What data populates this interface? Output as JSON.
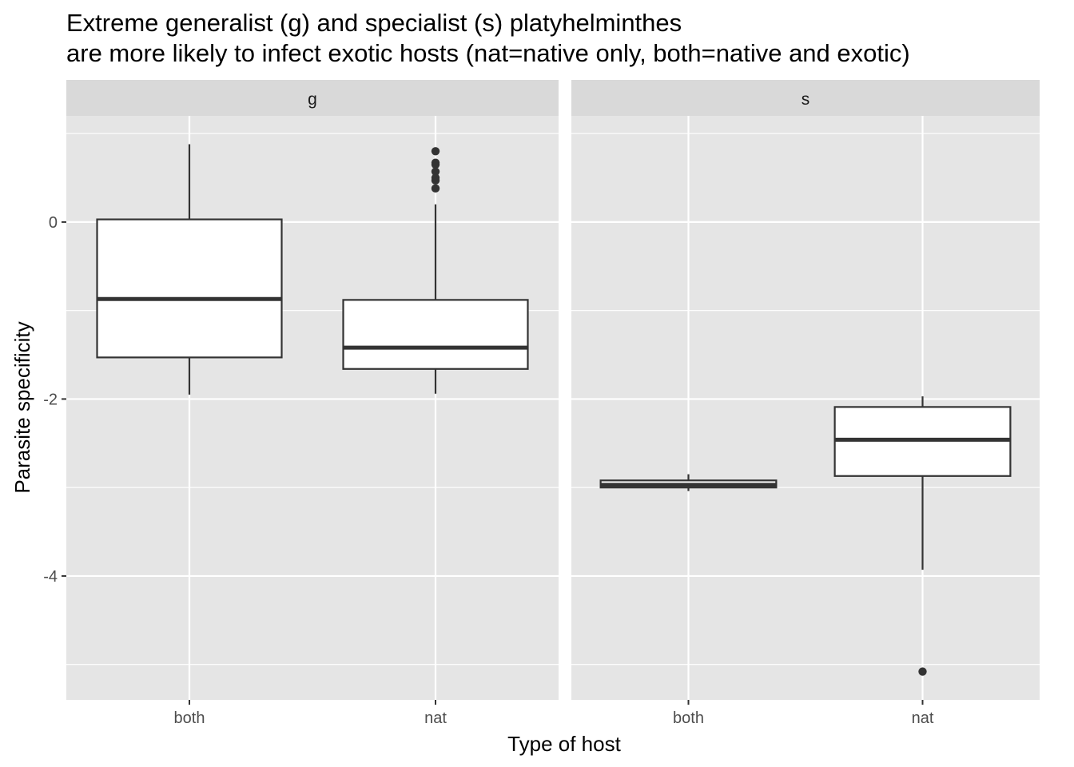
{
  "chart_data": {
    "type": "boxplot",
    "title_lines": [
      "Extreme generalist (g) and specialist (s) platyhelminthes",
      "are more likely to infect exotic hosts (nat=native only, both=native and exotic)"
    ],
    "xlabel": "Type of host",
    "ylabel": "Parasite specificity",
    "categories": [
      "both",
      "nat"
    ],
    "ylim": [
      -5.4,
      1.2
    ],
    "yticks": [
      0,
      -2,
      -4
    ],
    "ytick_labels": [
      "0",
      "-2",
      "-4"
    ],
    "grid": true,
    "panel_background": "#e5e5e5",
    "strip_background": "#d9d9d9",
    "grid_color": "#ffffff",
    "box_fill": "#ffffff",
    "box_line": "#333333",
    "facets": [
      {
        "label": "g",
        "boxes": [
          {
            "category": "both",
            "lower_whisker": -1.95,
            "q1": -1.53,
            "median": -0.87,
            "q3": 0.03,
            "upper_whisker": 0.88,
            "outliers": []
          },
          {
            "category": "nat",
            "lower_whisker": -1.94,
            "q1": -1.66,
            "median": -1.42,
            "q3": -0.88,
            "upper_whisker": 0.2,
            "outliers": [
              0.8,
              0.67,
              0.65,
              0.57,
              0.5,
              0.47,
              0.38
            ]
          }
        ]
      },
      {
        "label": "s",
        "boxes": [
          {
            "category": "both",
            "lower_whisker": -3.04,
            "q1": -3.0,
            "median": -2.97,
            "q3": -2.92,
            "upper_whisker": -2.85,
            "outliers": []
          },
          {
            "category": "nat",
            "lower_whisker": -3.93,
            "q1": -2.87,
            "median": -2.46,
            "q3": -2.09,
            "upper_whisker": -1.97,
            "outliers": [
              -5.08
            ]
          }
        ]
      }
    ]
  }
}
